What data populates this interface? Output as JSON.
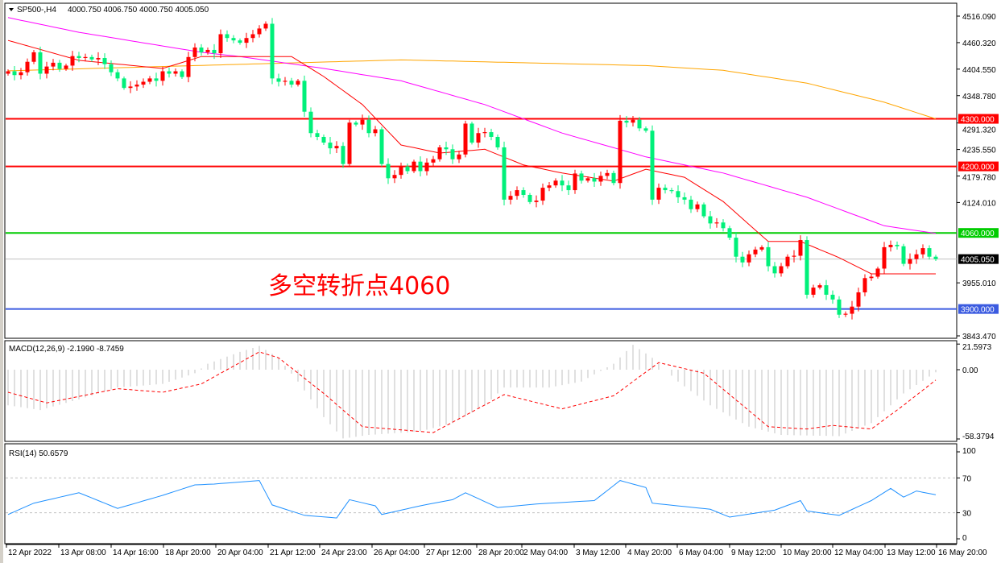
{
  "header": {
    "symbol": "SP500-,H4",
    "ohlc": "4000.750 4006.750 4000.750 4005.050"
  },
  "annotation": "多空转折点4060",
  "colors": {
    "up": "#ff0000",
    "down": "#00f07a",
    "ma_fast": "#ff0000",
    "ma_mid": "#ff00ff",
    "ma_slow": "#ffa500",
    "rsi": "#1e90ff",
    "macd_hist": "#c0c0c0",
    "macd_signal": "#ff0000"
  },
  "chart_data": [
    {
      "type": "candlestick",
      "title": "SP500-,H4",
      "price_axis": {
        "range": [
          3843.47,
          4516.09
        ],
        "ticks": [
          "4516.090",
          "4460.320",
          "4404.550",
          "4348.780",
          "4291.320",
          "4235.550",
          "4179.780",
          "4124.010",
          "3955.010",
          "3843.470"
        ]
      },
      "time_axis": {
        "ticks": [
          "12 Apr 2022",
          "13 Apr 08:00",
          "14 Apr 16:00",
          "18 Apr 20:00",
          "20 Apr 04:00",
          "21 Apr 12:00",
          "24 Apr 23:00",
          "26 Apr 04:00",
          "27 Apr 12:00",
          "28 Apr 20:00",
          "2 May 04:00",
          "3 May 12:00",
          "4 May 20:00",
          "6 May 04:00",
          "9 May 12:00",
          "10 May 20:00",
          "12 May 04:00",
          "13 May 12:00",
          "16 May 20:00"
        ]
      },
      "close": [
        4400,
        4392,
        4398,
        4420,
        4440,
        4395,
        4410,
        4418,
        4405,
        4412,
        4432,
        4428,
        4430,
        4425,
        4428,
        4415,
        4398,
        4385,
        4365,
        4368,
        4372,
        4378,
        4385,
        4380,
        4400,
        4395,
        4400,
        4388,
        4430,
        4450,
        4440,
        4445,
        4438,
        4478,
        4470,
        4465,
        4460,
        4470,
        4478,
        4490,
        4500,
        4385,
        4378,
        4380,
        4372,
        4380,
        4315,
        4270,
        4262,
        4250,
        4238,
        4243,
        4205,
        4292,
        4288,
        4298,
        4270,
        4278,
        4205,
        4175,
        4182,
        4200,
        4190,
        4210,
        4190,
        4208,
        4215,
        4240,
        4236,
        4215,
        4225,
        4290,
        4250,
        4270,
        4272,
        4262,
        4240,
        4130,
        4138,
        4150,
        4140,
        4125,
        4128,
        4155,
        4160,
        4170,
        4160,
        4150,
        4185,
        4170,
        4175,
        4168,
        4180,
        4186,
        4165,
        4296,
        4292,
        4298,
        4280,
        4275,
        4130,
        4155,
        4150,
        4148,
        4135,
        4130,
        4110,
        4120,
        4095,
        4080,
        4082,
        4070,
        4050,
        4010,
        3998,
        4015,
        4025,
        4030,
        3990,
        3975,
        3990,
        4010,
        4012,
        4045,
        3930,
        3945,
        3950,
        3930,
        3920,
        3888,
        3890,
        3905,
        3935,
        3965,
        3968,
        3985,
        4030,
        4035,
        4032,
        3995,
        4005,
        4015,
        4028,
        4010,
        4005.05
      ],
      "first_open": 4395,
      "moving_averages": {
        "fast": [
          [
            0,
            4465
          ],
          [
            11,
            4423
          ],
          [
            24,
            4406
          ],
          [
            30,
            4431
          ],
          [
            44,
            4431
          ],
          [
            49,
            4389
          ],
          [
            55,
            4330
          ],
          [
            61,
            4245
          ],
          [
            67,
            4228
          ],
          [
            74,
            4236
          ],
          [
            80,
            4203
          ],
          [
            86,
            4186
          ],
          [
            94,
            4169
          ],
          [
            99,
            4194
          ],
          [
            105,
            4177
          ],
          [
            111,
            4126
          ],
          [
            118,
            4042
          ],
          [
            123,
            4042
          ],
          [
            129,
            4008
          ],
          [
            134,
            3974
          ],
          [
            144,
            3974
          ]
        ],
        "mid": [
          [
            0,
            4513
          ],
          [
            11,
            4482
          ],
          [
            30,
            4440
          ],
          [
            36,
            4431
          ],
          [
            49,
            4406
          ],
          [
            61,
            4380
          ],
          [
            74,
            4330
          ],
          [
            86,
            4270
          ],
          [
            99,
            4220
          ],
          [
            111,
            4186
          ],
          [
            124,
            4135
          ],
          [
            136,
            4075
          ],
          [
            144,
            4059
          ]
        ],
        "slow": [
          [
            0,
            4401
          ],
          [
            29,
            4412
          ],
          [
            61,
            4424
          ],
          [
            99,
            4412
          ],
          [
            111,
            4402
          ],
          [
            124,
            4375
          ],
          [
            136,
            4335
          ],
          [
            144,
            4300
          ]
        ]
      },
      "levels": [
        {
          "price": 4300,
          "label": "4300.000",
          "color": "#ff0000"
        },
        {
          "price": 4200,
          "label": "4200.000",
          "color": "#ff0000"
        },
        {
          "price": 4060,
          "label": "4060.000",
          "color": "#00cc00"
        },
        {
          "price": 3900,
          "label": "3900.000",
          "color": "#3b5be0"
        }
      ],
      "current_price": {
        "price": 4005.05,
        "label": "4005.050"
      }
    },
    {
      "type": "bar+line",
      "title": "MACD(12,26,9) -2.1990 -8.7459",
      "axis": {
        "range": [
          -58.3794,
          21.5973
        ],
        "ticks": [
          "21.5973",
          "0.00",
          "-58.3794"
        ]
      },
      "main": [
        [
          0,
          -30
        ],
        [
          5,
          -34
        ],
        [
          11,
          -25
        ],
        [
          17,
          -15
        ],
        [
          24,
          -12
        ],
        [
          29,
          -3
        ],
        [
          31,
          5
        ],
        [
          36,
          15
        ],
        [
          39,
          20
        ],
        [
          42,
          10
        ],
        [
          45,
          -10
        ],
        [
          49,
          -40
        ],
        [
          52,
          -58
        ],
        [
          56,
          -55
        ],
        [
          64,
          -52
        ],
        [
          69,
          -45
        ],
        [
          74,
          -30
        ],
        [
          77,
          -15
        ],
        [
          84,
          -15
        ],
        [
          89,
          -10
        ],
        [
          94,
          5
        ],
        [
          97,
          21
        ],
        [
          100,
          10
        ],
        [
          104,
          -10
        ],
        [
          109,
          -30
        ],
        [
          115,
          -48
        ],
        [
          120,
          -55
        ],
        [
          129,
          -56
        ],
        [
          134,
          -45
        ],
        [
          139,
          -20
        ],
        [
          144,
          -2.2
        ]
      ],
      "signal": [
        [
          0,
          -19
        ],
        [
          6,
          -28
        ],
        [
          17,
          -16
        ],
        [
          24,
          -19
        ],
        [
          30,
          -12
        ],
        [
          39,
          15
        ],
        [
          42,
          10
        ],
        [
          49,
          -20
        ],
        [
          55,
          -48
        ],
        [
          66,
          -53
        ],
        [
          77,
          -21
        ],
        [
          86,
          -33
        ],
        [
          94,
          -22
        ],
        [
          101,
          6
        ],
        [
          108,
          -3
        ],
        [
          118,
          -48
        ],
        [
          124,
          -50
        ],
        [
          128,
          -47
        ],
        [
          134,
          -50
        ],
        [
          139,
          -30
        ],
        [
          144,
          -8.7
        ]
      ]
    },
    {
      "type": "line",
      "title": "RSI(14) 50.6579",
      "axis": {
        "range": [
          0,
          100
        ],
        "ticks": [
          "100",
          "70",
          "30",
          "0"
        ],
        "levels": [
          70,
          30
        ]
      },
      "values": [
        [
          0,
          28
        ],
        [
          4,
          41
        ],
        [
          11,
          53
        ],
        [
          17,
          35
        ],
        [
          24,
          50
        ],
        [
          29,
          62
        ],
        [
          32,
          63
        ],
        [
          39,
          67
        ],
        [
          41,
          39
        ],
        [
          46,
          27
        ],
        [
          51,
          24
        ],
        [
          53,
          45
        ],
        [
          57,
          38
        ],
        [
          58,
          28
        ],
        [
          64,
          38
        ],
        [
          69,
          45
        ],
        [
          71,
          53
        ],
        [
          76,
          36
        ],
        [
          82,
          40
        ],
        [
          91,
          44
        ],
        [
          95,
          67
        ],
        [
          99,
          59
        ],
        [
          100,
          41
        ],
        [
          109,
          34
        ],
        [
          112,
          25
        ],
        [
          119,
          33
        ],
        [
          123,
          44
        ],
        [
          124,
          32
        ],
        [
          129,
          27
        ],
        [
          134,
          44
        ],
        [
          137,
          58
        ],
        [
          139,
          48
        ],
        [
          141,
          55
        ],
        [
          144,
          50.66
        ]
      ]
    }
  ]
}
